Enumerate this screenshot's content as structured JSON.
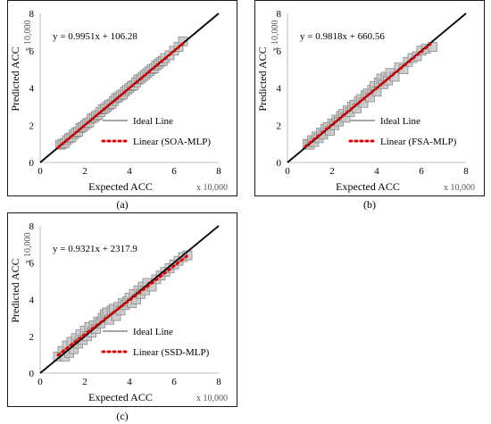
{
  "colors": {
    "ideal_line": "#000000",
    "fit_line": "#e00000",
    "marker_fill": "#c8c8c8",
    "marker_stroke": "#888888",
    "legend_ideal": "#a6a6a6"
  },
  "panels": [
    {
      "caption": "(a)",
      "chart_data": {
        "type": "scatter",
        "xlabel": "Expected ACC",
        "ylabel": "Predicted ACC",
        "x_multiplier": "x 10,000",
        "y_multiplier": "x 10,000",
        "xlim": [
          0,
          8
        ],
        "ylim": [
          0,
          8
        ],
        "xticks": [
          "0",
          "2",
          "4",
          "6",
          "8"
        ],
        "yticks": [
          "0",
          "2",
          "4",
          "6",
          "8"
        ],
        "equation": "y = 0.9951x + 106.28",
        "fit": {
          "slope": 0.9951,
          "intercept": 0.010628,
          "x_range": [
            0.8,
            6.4
          ]
        },
        "legend": [
          "Ideal Line",
          "Linear (SOA-MLP)"
        ],
        "series": [
          {
            "values": [
              [
                0.9,
                0.95
              ],
              [
                1.0,
                1.0
              ],
              [
                1.1,
                1.05
              ],
              [
                1.2,
                1.2
              ],
              [
                1.3,
                1.3
              ],
              [
                1.4,
                1.35
              ],
              [
                1.5,
                1.5
              ],
              [
                1.6,
                1.6
              ],
              [
                1.7,
                1.65
              ],
              [
                1.8,
                1.85
              ],
              [
                1.9,
                1.9
              ],
              [
                2.0,
                2.0
              ],
              [
                2.1,
                2.1
              ],
              [
                2.2,
                2.15
              ],
              [
                2.3,
                2.35
              ],
              [
                2.4,
                2.4
              ],
              [
                2.5,
                2.5
              ],
              [
                2.6,
                2.55
              ],
              [
                2.7,
                2.7
              ],
              [
                2.8,
                2.85
              ],
              [
                2.9,
                2.9
              ],
              [
                3.0,
                3.0
              ],
              [
                3.1,
                3.1
              ],
              [
                3.2,
                3.15
              ],
              [
                3.3,
                3.3
              ],
              [
                3.4,
                3.45
              ],
              [
                3.5,
                3.5
              ],
              [
                3.6,
                3.6
              ],
              [
                3.7,
                3.65
              ],
              [
                3.8,
                3.8
              ],
              [
                3.9,
                3.9
              ],
              [
                4.0,
                4.0
              ],
              [
                4.1,
                4.1
              ],
              [
                4.2,
                4.15
              ],
              [
                4.3,
                4.3
              ],
              [
                4.4,
                4.45
              ],
              [
                4.5,
                4.5
              ],
              [
                4.6,
                4.6
              ],
              [
                4.7,
                4.7
              ],
              [
                4.8,
                4.8
              ],
              [
                4.9,
                4.9
              ],
              [
                5.0,
                5.0
              ],
              [
                5.1,
                5.05
              ],
              [
                5.2,
                5.2
              ],
              [
                5.3,
                5.3
              ],
              [
                5.4,
                5.4
              ],
              [
                5.5,
                5.45
              ],
              [
                5.6,
                5.6
              ],
              [
                5.8,
                5.75
              ],
              [
                6.0,
                6.0
              ],
              [
                6.2,
                6.2
              ],
              [
                6.4,
                6.5
              ]
            ]
          }
        ]
      }
    },
    {
      "caption": "(b)",
      "chart_data": {
        "type": "scatter",
        "xlabel": "Expected ACC",
        "ylabel": "Predicted ACC",
        "x_multiplier": "x 10,000",
        "y_multiplier": "x 10,000",
        "xlim": [
          0,
          8
        ],
        "ylim": [
          0,
          8
        ],
        "xticks": [
          "0",
          "2",
          "4",
          "6",
          "8"
        ],
        "yticks": [
          "0",
          "2",
          "4",
          "6",
          "8"
        ],
        "equation": "y = 0.9818x + 660.56",
        "fit": {
          "slope": 0.9818,
          "intercept": 0.066056,
          "x_range": [
            0.8,
            6.4
          ]
        },
        "legend": [
          "Ideal Line",
          "Linear (FSA-MLP)"
        ],
        "series": [
          {
            "values": [
              [
                0.9,
                1.0
              ],
              [
                1.0,
                0.95
              ],
              [
                1.1,
                1.2
              ],
              [
                1.2,
                1.1
              ],
              [
                1.3,
                1.4
              ],
              [
                1.4,
                1.3
              ],
              [
                1.5,
                1.6
              ],
              [
                1.6,
                1.5
              ],
              [
                1.7,
                1.8
              ],
              [
                1.8,
                1.9
              ],
              [
                1.9,
                1.7
              ],
              [
                2.0,
                2.1
              ],
              [
                2.1,
                2.0
              ],
              [
                2.2,
                2.3
              ],
              [
                2.3,
                2.2
              ],
              [
                2.4,
                2.5
              ],
              [
                2.5,
                2.6
              ],
              [
                2.6,
                2.4
              ],
              [
                2.7,
                2.8
              ],
              [
                2.8,
                2.7
              ],
              [
                2.9,
                3.0
              ],
              [
                3.0,
                3.1
              ],
              [
                3.1,
                2.9
              ],
              [
                3.2,
                3.3
              ],
              [
                3.3,
                3.4
              ],
              [
                3.4,
                3.2
              ],
              [
                3.5,
                3.6
              ],
              [
                3.6,
                3.7
              ],
              [
                3.7,
                3.5
              ],
              [
                3.8,
                3.9
              ],
              [
                3.9,
                4.1
              ],
              [
                4.0,
                3.8
              ],
              [
                4.1,
                4.3
              ],
              [
                4.2,
                4.5
              ],
              [
                4.3,
                4.2
              ],
              [
                4.4,
                4.6
              ],
              [
                4.5,
                4.4
              ],
              [
                4.6,
                4.8
              ],
              [
                4.8,
                4.6
              ],
              [
                5.0,
                5.1
              ],
              [
                5.2,
                5.0
              ],
              [
                5.4,
                5.4
              ],
              [
                5.6,
                5.6
              ],
              [
                5.8,
                5.7
              ],
              [
                6.0,
                6.0
              ],
              [
                6.2,
                6.1
              ],
              [
                6.5,
                6.2
              ]
            ]
          }
        ]
      }
    },
    {
      "caption": "(c)",
      "chart_data": {
        "type": "scatter",
        "xlabel": "Expected ACC",
        "ylabel": "Predicted ACC",
        "x_multiplier": "x 10,000",
        "y_multiplier": "x 10,000",
        "xlim": [
          0,
          8
        ],
        "ylim": [
          0,
          8
        ],
        "xticks": [
          "0",
          "2",
          "4",
          "6",
          "8"
        ],
        "yticks": [
          "0",
          "2",
          "4",
          "6",
          "8"
        ],
        "equation": "y = 0.9321x + 2317.9",
        "fit": {
          "slope": 0.9321,
          "intercept": 0.23179,
          "x_range": [
            0.8,
            6.6
          ]
        },
        "legend": [
          "Ideal Line",
          "Linear (SSD-MLP)"
        ],
        "series": [
          {
            "values": [
              [
                0.8,
                0.9
              ],
              [
                1.0,
                1.2
              ],
              [
                1.1,
                0.9
              ],
              [
                1.2,
                1.5
              ],
              [
                1.3,
                1.1
              ],
              [
                1.4,
                1.7
              ],
              [
                1.5,
                1.3
              ],
              [
                1.6,
                1.9
              ],
              [
                1.7,
                1.6
              ],
              [
                1.8,
                2.1
              ],
              [
                1.9,
                1.8
              ],
              [
                2.0,
                2.3
              ],
              [
                2.1,
                2.0
              ],
              [
                2.2,
                2.5
              ],
              [
                2.3,
                2.2
              ],
              [
                2.4,
                2.6
              ],
              [
                2.5,
                2.4
              ],
              [
                2.6,
                2.8
              ],
              [
                2.7,
                2.7
              ],
              [
                2.8,
                3.0
              ],
              [
                2.9,
                3.2
              ],
              [
                3.0,
                3.3
              ],
              [
                3.1,
                2.9
              ],
              [
                3.2,
                3.4
              ],
              [
                3.3,
                3.5
              ],
              [
                3.4,
                3.1
              ],
              [
                3.5,
                3.6
              ],
              [
                3.6,
                3.4
              ],
              [
                3.7,
                3.8
              ],
              [
                3.8,
                3.7
              ],
              [
                3.9,
                3.9
              ],
              [
                4.0,
                4.1
              ],
              [
                4.1,
                3.8
              ],
              [
                4.2,
                4.3
              ],
              [
                4.3,
                4.0
              ],
              [
                4.4,
                4.5
              ],
              [
                4.5,
                4.3
              ],
              [
                4.6,
                4.7
              ],
              [
                4.7,
                4.5
              ],
              [
                4.8,
                4.9
              ],
              [
                5.0,
                4.7
              ],
              [
                5.2,
                5.1
              ],
              [
                5.4,
                5.3
              ],
              [
                5.6,
                5.5
              ],
              [
                5.8,
                5.7
              ],
              [
                6.0,
                5.9
              ],
              [
                6.2,
                6.1
              ],
              [
                6.4,
                6.3
              ],
              [
                6.6,
                6.4
              ]
            ]
          }
        ]
      }
    }
  ]
}
